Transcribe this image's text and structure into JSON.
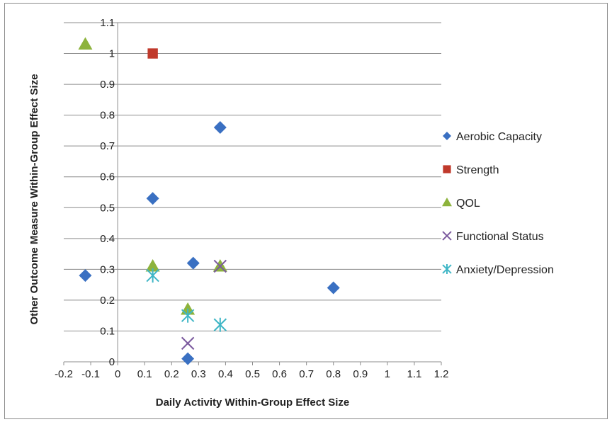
{
  "chart_data": {
    "type": "scatter",
    "title": "",
    "xlabel": "Daily Activity Within-Group Effect Size",
    "ylabel": "Other Outcome Measure Within-Group Effect Size",
    "xlim": [
      -0.2,
      1.2
    ],
    "ylim": [
      0,
      1.1
    ],
    "x_ticks": [
      "-0.2",
      "-0.1",
      "0",
      "0.1",
      "0.2",
      "0.3",
      "0.4",
      "0.5",
      "0.6",
      "0.7",
      "0.8",
      "0.9",
      "1",
      "1.1",
      "1.2"
    ],
    "y_ticks": [
      "0",
      "0.1",
      "0.2",
      "0.3",
      "0.4",
      "0.5",
      "0.6",
      "0.7",
      "0.8",
      "0.9",
      "1",
      "1.1"
    ],
    "grid": "horizontal",
    "legend_position": "right",
    "series": [
      {
        "name": "Aerobic Capacity",
        "marker": "diamond",
        "color": "#3a70c2",
        "points": [
          [
            -0.12,
            0.28
          ],
          [
            0.13,
            0.53
          ],
          [
            0.28,
            0.32
          ],
          [
            0.38,
            0.76
          ],
          [
            0.26,
            0.01
          ],
          [
            0.8,
            0.24
          ]
        ]
      },
      {
        "name": "Strength",
        "marker": "square",
        "color": "#c0392b",
        "points": [
          [
            0.13,
            1.0
          ]
        ]
      },
      {
        "name": "QOL",
        "marker": "triangle",
        "color": "#8db33c",
        "points": [
          [
            -0.12,
            1.03
          ],
          [
            0.13,
            0.31
          ],
          [
            0.26,
            0.17
          ],
          [
            0.38,
            0.31
          ]
        ]
      },
      {
        "name": "Functional Status",
        "marker": "x",
        "color": "#7b5a9e",
        "points": [
          [
            0.26,
            0.06
          ],
          [
            0.38,
            0.31
          ]
        ]
      },
      {
        "name": "Anxiety/Depression",
        "marker": "star",
        "color": "#3fb6c6",
        "points": [
          [
            0.13,
            0.28
          ],
          [
            0.26,
            0.15
          ],
          [
            0.38,
            0.12
          ]
        ]
      }
    ]
  }
}
